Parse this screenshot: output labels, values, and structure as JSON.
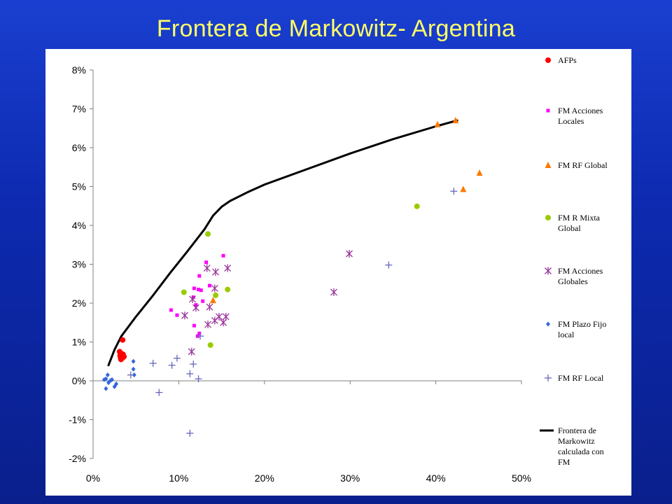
{
  "slide": {
    "title": "Frontera de Markowitz- Argentina"
  },
  "chart_data": {
    "type": "scatter",
    "title": "",
    "xlabel": "",
    "ylabel": "",
    "xlim": [
      0,
      0.5
    ],
    "ylim": [
      -0.02,
      0.08
    ],
    "x_ticks": [
      0,
      0.1,
      0.2,
      0.3,
      0.4,
      0.5
    ],
    "x_tick_labels": [
      "0%",
      "10%",
      "20%",
      "30%",
      "40%",
      "50%"
    ],
    "y_ticks": [
      -0.02,
      -0.01,
      0,
      0.01,
      0.02,
      0.03,
      0.04,
      0.05,
      0.06,
      0.07,
      0.08
    ],
    "y_tick_labels": [
      "-2%",
      "-1%",
      "0%",
      "1%",
      "2%",
      "3%",
      "4%",
      "5%",
      "6%",
      "7%",
      "8%"
    ],
    "grid": false,
    "legend_position": "right",
    "series": [
      {
        "name": "AFPs",
        "marker": "circle",
        "color": "#ff0000",
        "points": [
          [
            0.0345,
            0.0105
          ],
          [
            0.031,
            0.0075
          ],
          [
            0.033,
            0.007
          ],
          [
            0.0315,
            0.0065
          ],
          [
            0.035,
            0.0068
          ],
          [
            0.032,
            0.006
          ],
          [
            0.034,
            0.0058
          ],
          [
            0.0325,
            0.0055
          ],
          [
            0.036,
            0.0062
          ]
        ]
      },
      {
        "name": "FM Acciones Locales",
        "marker": "square",
        "color": "#ff00ff",
        "points": [
          [
            0.152,
            0.0322
          ],
          [
            0.132,
            0.0305
          ],
          [
            0.136,
            0.0245
          ],
          [
            0.123,
            0.0235
          ],
          [
            0.118,
            0.0238
          ],
          [
            0.126,
            0.0233
          ],
          [
            0.124,
            0.027
          ],
          [
            0.117,
            0.0215
          ],
          [
            0.128,
            0.0205
          ],
          [
            0.091,
            0.0182
          ],
          [
            0.098,
            0.0169
          ],
          [
            0.12,
            0.0195
          ],
          [
            0.118,
            0.0142
          ],
          [
            0.124,
            0.0122
          ],
          [
            0.122,
            0.0115
          ],
          [
            0.12,
            0.0195
          ]
        ]
      },
      {
        "name": "FM RF Global",
        "marker": "triangle",
        "color": "#ff7700",
        "points": [
          [
            0.423,
            0.067
          ],
          [
            0.402,
            0.066
          ],
          [
            0.451,
            0.0535
          ],
          [
            0.432,
            0.0493
          ],
          [
            0.14,
            0.0207
          ]
        ]
      },
      {
        "name": "FM R Mixta Global",
        "marker": "circle",
        "color": "#99cc00",
        "points": [
          [
            0.134,
            0.0378
          ],
          [
            0.378,
            0.0449
          ],
          [
            0.157,
            0.0235
          ],
          [
            0.106,
            0.0228
          ],
          [
            0.143,
            0.022
          ],
          [
            0.137,
            0.0092
          ]
        ]
      },
      {
        "name": "FM Acciones Globales",
        "marker": "asterisk",
        "color": "#993399",
        "points": [
          [
            0.299,
            0.0327
          ],
          [
            0.281,
            0.0228
          ],
          [
            0.133,
            0.029
          ],
          [
            0.157,
            0.029
          ],
          [
            0.143,
            0.028
          ],
          [
            0.142,
            0.0238
          ],
          [
            0.116,
            0.021
          ],
          [
            0.136,
            0.019
          ],
          [
            0.12,
            0.0188
          ],
          [
            0.107,
            0.0168
          ],
          [
            0.147,
            0.0165
          ],
          [
            0.155,
            0.0165
          ],
          [
            0.142,
            0.0155
          ],
          [
            0.152,
            0.015
          ],
          [
            0.134,
            0.0145
          ],
          [
            0.115,
            0.0075
          ]
        ]
      },
      {
        "name": "FM Plazo Fijo local",
        "marker": "diamond",
        "color": "#3366dd",
        "points": [
          [
            0.047,
            0.005
          ],
          [
            0.047,
            0.003
          ],
          [
            0.048,
            0.0015
          ],
          [
            0.017,
            0.0015
          ],
          [
            0.015,
            0.0005
          ],
          [
            0.02,
            0
          ],
          [
            0.022,
            0.0003
          ],
          [
            0.018,
            -0.0005
          ],
          [
            0.027,
            -0.0008
          ],
          [
            0.025,
            -0.0015
          ],
          [
            0.015,
            -0.002
          ],
          [
            0.013,
            0.0003
          ]
        ]
      },
      {
        "name": "FM RF Local",
        "marker": "plus",
        "color": "#6666bb",
        "points": [
          [
            0.421,
            0.0488
          ],
          [
            0.345,
            0.0298
          ],
          [
            0.125,
            0.0115
          ],
          [
            0.07,
            0.0045
          ],
          [
            0.092,
            0.004
          ],
          [
            0.098,
            0.0058
          ],
          [
            0.117,
            0.0043
          ],
          [
            0.113,
            0.0018
          ],
          [
            0.123,
            0.0005
          ],
          [
            0.044,
            0.0015
          ],
          [
            0.077,
            -0.003
          ],
          [
            0.113,
            -0.0135
          ]
        ]
      }
    ],
    "frontier": {
      "name": "Frontera de Markowitz calculada con FM",
      "color": "#000000",
      "points": [
        [
          0.018,
          0.004
        ],
        [
          0.025,
          0.008
        ],
        [
          0.033,
          0.0115
        ],
        [
          0.05,
          0.0165
        ],
        [
          0.07,
          0.022
        ],
        [
          0.09,
          0.0278
        ],
        [
          0.11,
          0.0333
        ],
        [
          0.13,
          0.039
        ],
        [
          0.14,
          0.0425
        ],
        [
          0.15,
          0.0448
        ],
        [
          0.16,
          0.0463
        ],
        [
          0.18,
          0.0485
        ],
        [
          0.2,
          0.0505
        ],
        [
          0.25,
          0.0545
        ],
        [
          0.3,
          0.0585
        ],
        [
          0.35,
          0.0622
        ],
        [
          0.4,
          0.0655
        ],
        [
          0.425,
          0.067
        ]
      ]
    }
  }
}
